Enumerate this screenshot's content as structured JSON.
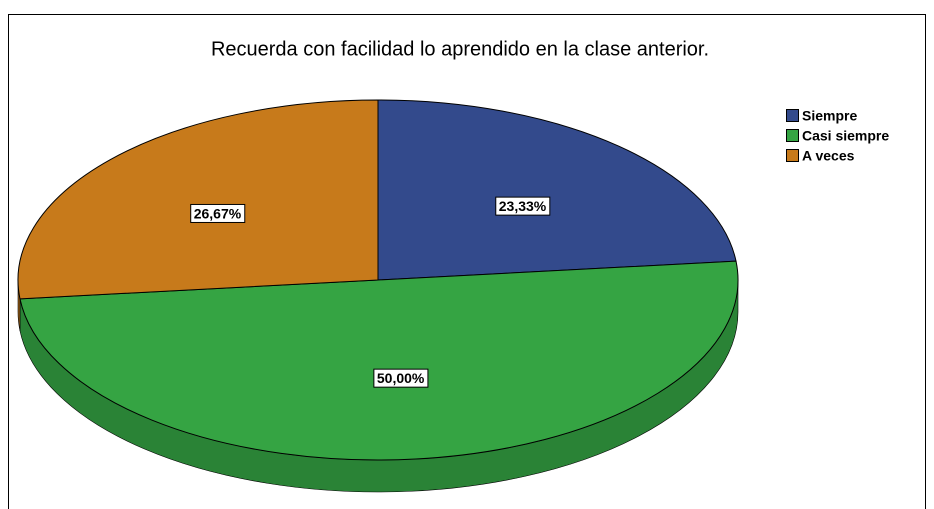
{
  "chart_data": {
    "type": "pie",
    "title": "Recuerda con facilidad lo aprendido en la clase anterior.",
    "categories": [
      "Siempre",
      "Casi siempre",
      "A veces"
    ],
    "values": [
      23.33,
      50,
      26.67
    ],
    "value_labels": [
      "23,33%",
      "50,00%",
      "26,67%"
    ],
    "colors": [
      "#334a8c",
      "#35a443",
      "#c77a1b"
    ],
    "legend": "right"
  }
}
